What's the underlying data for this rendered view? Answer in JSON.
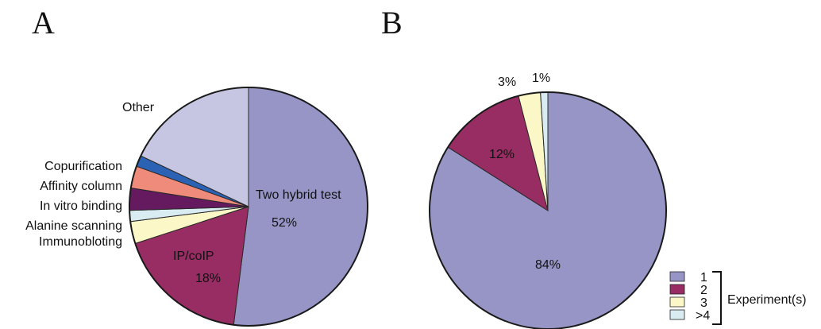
{
  "panels": {
    "a": {
      "letter": "A"
    },
    "b": {
      "letter": "B"
    }
  },
  "chart_data": [
    {
      "type": "pie",
      "panel": "A",
      "slices": [
        {
          "label": "Two hybrid test",
          "value": 52,
          "value_label": "52%",
          "color": "#9695c5"
        },
        {
          "label": "IP/coIP",
          "value": 18,
          "value_label": "18%",
          "color": "#982d64"
        },
        {
          "label": "Immunobloting",
          "value": 3,
          "color": "#fbf7c6"
        },
        {
          "label": "Alanine scanning",
          "value": 1.5,
          "color": "#d9ecf2"
        },
        {
          "label": "In vitro binding",
          "value": 3,
          "color": "#65195f"
        },
        {
          "label": "Affinity column",
          "value": 3,
          "color": "#ef8b7a"
        },
        {
          "label": "Copurification",
          "value": 1.5,
          "color": "#2b62b3"
        },
        {
          "label": "Other",
          "value": 18,
          "color": "#c6c6e3"
        }
      ]
    },
    {
      "type": "pie",
      "panel": "B",
      "slices": [
        {
          "label": "1",
          "value": 84,
          "value_label": "84%",
          "color": "#9695c5"
        },
        {
          "label": "2",
          "value": 12,
          "value_label": "12%",
          "color": "#982d64"
        },
        {
          "label": "3",
          "value": 3,
          "value_label": "3%",
          "color": "#fbf7c6"
        },
        {
          "label": ">4",
          "value": 1,
          "value_label": "1%",
          "color": "#d9ecf2"
        }
      ],
      "legend": {
        "title": "Experiment(s)",
        "entries": [
          "1",
          "2",
          "3",
          ">4"
        ],
        "colors": [
          "#9695c5",
          "#982d64",
          "#fbf7c6",
          "#d9ecf2"
        ],
        "position": "bottom-right"
      }
    }
  ]
}
